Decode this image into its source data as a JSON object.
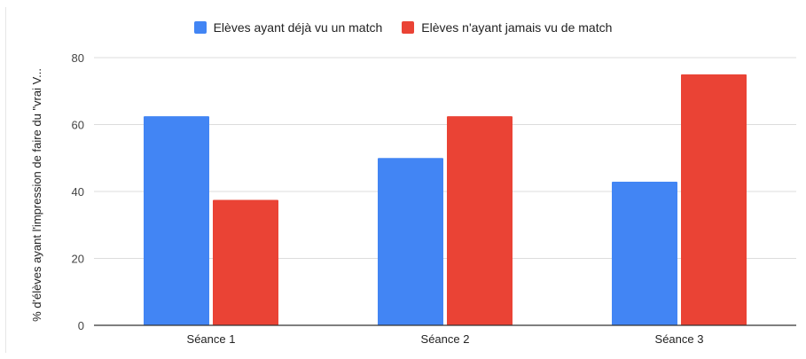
{
  "chart_data": {
    "type": "bar",
    "title": "",
    "xlabel": "",
    "ylabel": "% d'élèves ayant l'impression de faire du \"vrai V...",
    "categories": [
      "Séance 1",
      "Séance 2",
      "Séance 3"
    ],
    "series": [
      {
        "name": "Elèves ayant déjà vu un match",
        "color": "#4285f4",
        "values": [
          62.5,
          50,
          42.9
        ]
      },
      {
        "name": "Elèves n'ayant jamais vu de match",
        "color": "#ea4335",
        "values": [
          37.5,
          62.5,
          75
        ]
      }
    ],
    "ylim": [
      0,
      80
    ],
    "yticks": [
      "0",
      "20",
      "40",
      "60",
      "80"
    ],
    "grid": true,
    "legend_position": "top-center"
  }
}
